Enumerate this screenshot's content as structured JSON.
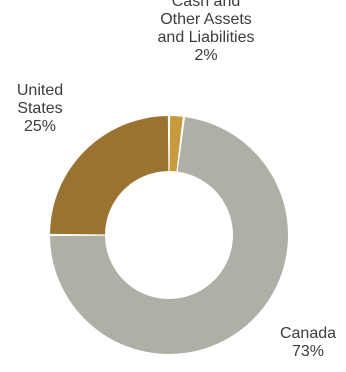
{
  "chart_data": {
    "type": "pie",
    "donut": true,
    "title": "",
    "slices": [
      {
        "label_lines": [
          "Cash and",
          "Other Assets",
          "and Liabilities"
        ],
        "value": 2,
        "value_label": "2%",
        "color": "#c69a3d"
      },
      {
        "label_lines": [
          "Canada"
        ],
        "value": 73,
        "value_label": "73%",
        "color": "#afafa6"
      },
      {
        "label_lines": [
          "United",
          "States"
        ],
        "value": 25,
        "value_label": "25%",
        "color": "#9a7331"
      }
    ],
    "legend": "none"
  }
}
